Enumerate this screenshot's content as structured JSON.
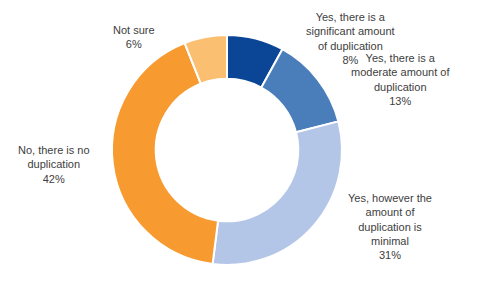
{
  "chart_data": {
    "type": "pie",
    "categories": [
      "Yes, there is a significant amount of duplication",
      "Yes, there is a moderate amount of duplication",
      "Yes, however the amount of duplication is minimal",
      "No, there is no duplication",
      "Not sure"
    ],
    "values": [
      8,
      13,
      31,
      42,
      6
    ],
    "value_labels": [
      "8%",
      "13%",
      "31%",
      "42%",
      "6%"
    ],
    "colors": [
      "#0b4596",
      "#4a7ebb",
      "#b4c6e7",
      "#f79a30",
      "#fbbf72"
    ],
    "data_labels": true
  }
}
